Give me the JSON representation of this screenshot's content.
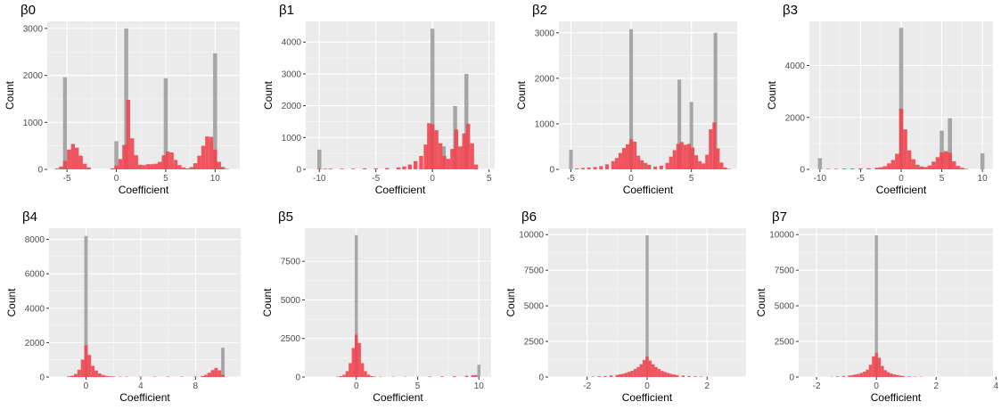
{
  "colors": {
    "panel_bg": "#ebebeb",
    "grid": "#ffffff",
    "gray_bar": "#999999",
    "red_bar": "#f0454f"
  },
  "layout_words": {
    "grid": "2 rows x 4 columns",
    "overlay": "gray histogram behind semi-transparent red histogram"
  },
  "chart_data": [
    {
      "type": "bar",
      "title": "β0",
      "xlabel": "Coefficient",
      "ylabel": "Count",
      "xlim": [
        -7,
        12.5
      ],
      "ylim": [
        0,
        3150
      ],
      "xticks": [
        -5,
        0,
        5,
        10
      ],
      "xtick_labels": [
        "-5",
        "0",
        "5",
        "10"
      ],
      "yticks": [
        0,
        1000,
        2000,
        3000
      ],
      "ytick_labels": [
        "0",
        "1000",
        "2000",
        "3000"
      ],
      "bar_width": 0.4,
      "series": [
        {
          "color": "gray",
          "x": [
            -5.2,
            0,
            1,
            5,
            10
          ],
          "values": [
            1960,
            600,
            3000,
            1940,
            2470
          ]
        },
        {
          "color": "red",
          "x": [
            -6,
            -5.6,
            -5.2,
            -4.8,
            -4.4,
            -4,
            -3.6,
            -3.2,
            -2.8,
            -0.4,
            0,
            0.4,
            0.8,
            1.2,
            1.6,
            2,
            2.4,
            2.8,
            3.2,
            3.6,
            4,
            4.4,
            4.8,
            5.2,
            5.6,
            6,
            6.4,
            6.8,
            7.2,
            7.6,
            8,
            8.4,
            8.8,
            9.2,
            9.6,
            10,
            10.4,
            10.8,
            11.2
          ],
          "values": [
            20,
            60,
            180,
            420,
            540,
            460,
            290,
            120,
            40,
            20,
            80,
            220,
            520,
            1480,
            660,
            300,
            100,
            90,
            110,
            110,
            120,
            160,
            300,
            380,
            360,
            200,
            90,
            40,
            20,
            50,
            130,
            290,
            500,
            700,
            690,
            420,
            160,
            50,
            10
          ]
        }
      ]
    },
    {
      "type": "bar",
      "title": "β1",
      "xlabel": "Coefficient",
      "ylabel": "Count",
      "xlim": [
        -11.2,
        5.5
      ],
      "ylim": [
        0,
        4650
      ],
      "xticks": [
        -10,
        -5,
        0,
        5
      ],
      "xtick_labels": [
        "-10",
        "-5",
        "0",
        "5"
      ],
      "yticks": [
        0,
        1000,
        2000,
        3000,
        4000
      ],
      "ytick_labels": [
        "0",
        "1000",
        "2000",
        "3000",
        "4000"
      ],
      "bar_width": 0.35,
      "series": [
        {
          "color": "gray",
          "x": [
            -10,
            0,
            1,
            2,
            3
          ],
          "values": [
            620,
            4420,
            720,
            1990,
            3000
          ]
        },
        {
          "color": "red",
          "x": [
            -10,
            -9.5,
            -9,
            -8,
            -7,
            -6,
            -5,
            -4,
            -3,
            -2.5,
            -2,
            -1.5,
            -1,
            -0.6,
            -0.3,
            0,
            0.35,
            0.7,
            1.05,
            1.4,
            1.75,
            2.1,
            2.45,
            2.8,
            3.15,
            3.5,
            3.85
          ],
          "values": [
            20,
            20,
            20,
            20,
            20,
            30,
            30,
            40,
            60,
            90,
            150,
            260,
            420,
            780,
            1450,
            1420,
            1230,
            820,
            420,
            330,
            640,
            1250,
            720,
            1130,
            1430,
            820,
            150
          ]
        }
      ]
    },
    {
      "type": "bar",
      "title": "β2",
      "xlabel": "Coefficient",
      "ylabel": "Count",
      "xlim": [
        -6,
        8.8
      ],
      "ylim": [
        0,
        3250
      ],
      "xticks": [
        -5,
        0,
        5
      ],
      "xtick_labels": [
        "-5",
        "0",
        "5"
      ],
      "yticks": [
        0,
        1000,
        2000,
        3000
      ],
      "ytick_labels": [
        "0",
        "1000",
        "2000",
        "3000"
      ],
      "bar_width": 0.3,
      "series": [
        {
          "color": "gray",
          "x": [
            -5,
            0,
            4,
            5,
            7
          ],
          "values": [
            430,
            3080,
            1970,
            1480,
            3000
          ]
        },
        {
          "color": "red",
          "x": [
            -4.5,
            -4,
            -3.5,
            -3,
            -2.5,
            -2,
            -1.5,
            -1.2,
            -0.9,
            -0.6,
            -0.3,
            0,
            0.3,
            0.6,
            0.9,
            1.2,
            1.5,
            2,
            2.5,
            3,
            3.3,
            3.6,
            3.9,
            4.2,
            4.5,
            4.8,
            5.1,
            5.4,
            5.7,
            6,
            6.3,
            6.6,
            6.9,
            7.2,
            7.5,
            7.8,
            8.1
          ],
          "values": [
            20,
            30,
            40,
            50,
            70,
            110,
            180,
            250,
            360,
            470,
            550,
            660,
            610,
            300,
            200,
            140,
            100,
            60,
            80,
            140,
            280,
            420,
            560,
            600,
            540,
            560,
            480,
            310,
            180,
            130,
            320,
            880,
            1030,
            460,
            150,
            40,
            10
          ]
        }
      ]
    },
    {
      "type": "bar",
      "title": "β3",
      "xlabel": "Coefficient",
      "ylabel": "Count",
      "xlim": [
        -11.3,
        11.3
      ],
      "ylim": [
        0,
        5700
      ],
      "xticks": [
        -10,
        -5,
        0,
        5,
        10
      ],
      "xtick_labels": [
        "-10",
        "-5",
        "0",
        "5",
        "10"
      ],
      "yticks": [
        0,
        2000,
        4000
      ],
      "ytick_labels": [
        "0",
        "2000",
        "4000"
      ],
      "bar_width": 0.5,
      "series": [
        {
          "color": "gray",
          "x": [
            -10,
            0,
            5,
            6,
            10
          ],
          "values": [
            430,
            5450,
            1490,
            1970,
            620
          ]
        },
        {
          "color": "red",
          "x": [
            -9,
            -8,
            -7,
            -6,
            -5,
            -4,
            -3,
            -2.5,
            -2,
            -1.5,
            -1,
            -0.5,
            0,
            0.5,
            1,
            1.5,
            2,
            2.5,
            3,
            3.5,
            4,
            4.5,
            5,
            5.5,
            6,
            6.5,
            7,
            7.5,
            8
          ],
          "values": [
            20,
            20,
            30,
            30,
            40,
            40,
            60,
            80,
            120,
            230,
            360,
            600,
            2330,
            1540,
            730,
            390,
            180,
            110,
            90,
            150,
            300,
            470,
            650,
            700,
            640,
            310,
            130,
            60,
            20
          ]
        }
      ]
    },
    {
      "type": "bar",
      "title": "β4",
      "xlabel": "Coefficient",
      "ylabel": "Count",
      "xlim": [
        -2.7,
        11.3
      ],
      "ylim": [
        0,
        8650
      ],
      "xticks": [
        0,
        4,
        8
      ],
      "xtick_labels": [
        "0",
        "4",
        "8"
      ],
      "yticks": [
        0,
        2000,
        4000,
        6000,
        8000
      ],
      "ytick_labels": [
        "0",
        "2000",
        "4000",
        "6000",
        "8000"
      ],
      "bar_width": 0.25,
      "series": [
        {
          "color": "gray",
          "x": [
            0,
            10
          ],
          "values": [
            8200,
            1700
          ]
        },
        {
          "color": "red",
          "x": [
            -1.25,
            -1,
            -0.75,
            -0.5,
            -0.25,
            0,
            0.25,
            0.5,
            0.75,
            1,
            1.25,
            1.5,
            1.75,
            2,
            2.5,
            3,
            4,
            5,
            6,
            7,
            8,
            8.5,
            8.75,
            9,
            9.25,
            9.5,
            9.75,
            10
          ],
          "values": [
            40,
            80,
            180,
            420,
            1010,
            1850,
            1280,
            650,
            380,
            210,
            120,
            70,
            40,
            30,
            20,
            20,
            20,
            20,
            20,
            20,
            30,
            60,
            120,
            250,
            400,
            530,
            390,
            120
          ]
        }
      ]
    },
    {
      "type": "bar",
      "title": "β5",
      "xlabel": "Coefficient",
      "ylabel": "Count",
      "xlim": [
        -4.2,
        11
      ],
      "ylim": [
        0,
        9650
      ],
      "xticks": [
        0,
        5,
        10
      ],
      "xtick_labels": [
        "0",
        "5",
        "10"
      ],
      "yticks": [
        0,
        2500,
        5000,
        7500
      ],
      "ytick_labels": [
        "0",
        "2500",
        "5000",
        "7500"
      ],
      "bar_width": 0.25,
      "series": [
        {
          "color": "gray",
          "x": [
            0,
            10
          ],
          "values": [
            9200,
            800
          ]
        },
        {
          "color": "red",
          "x": [
            -1.5,
            -1.25,
            -1,
            -0.75,
            -0.5,
            -0.25,
            0,
            0.25,
            0.5,
            0.75,
            1,
            1.25,
            1.5,
            2,
            3,
            4,
            5,
            6,
            7,
            8,
            9,
            9.5,
            9.75
          ],
          "values": [
            30,
            60,
            150,
            380,
            900,
            1880,
            2750,
            2200,
            900,
            380,
            150,
            60,
            30,
            20,
            20,
            20,
            20,
            30,
            40,
            50,
            80,
            120,
            130
          ]
        }
      ]
    },
    {
      "type": "bar",
      "title": "β6",
      "xlabel": "Coefficient",
      "ylabel": "Count",
      "xlim": [
        -3.3,
        3.3
      ],
      "ylim": [
        0,
        10450
      ],
      "xticks": [
        -2,
        0,
        2
      ],
      "xtick_labels": [
        "-2",
        "0",
        "2"
      ],
      "yticks": [
        0,
        2500,
        5000,
        7500,
        10000
      ],
      "ytick_labels": [
        "0",
        "2500",
        "5000",
        "7500",
        "10000"
      ],
      "bar_width": 0.1,
      "series": [
        {
          "color": "gray",
          "x": [
            0
          ],
          "values": [
            9950
          ]
        },
        {
          "color": "red",
          "x": [
            -2,
            -1.8,
            -1.6,
            -1.4,
            -1.2,
            -1,
            -0.9,
            -0.8,
            -0.7,
            -0.6,
            -0.5,
            -0.4,
            -0.3,
            -0.2,
            -0.1,
            0,
            0.1,
            0.2,
            0.3,
            0.4,
            0.5,
            0.6,
            0.7,
            0.8,
            0.9,
            1,
            1.2,
            1.4,
            1.6,
            1.8,
            2
          ],
          "values": [
            20,
            30,
            50,
            70,
            110,
            150,
            190,
            230,
            290,
            360,
            440,
            570,
            700,
            900,
            1200,
            1450,
            1150,
            900,
            700,
            560,
            430,
            350,
            280,
            220,
            180,
            140,
            100,
            70,
            50,
            30,
            20
          ]
        }
      ]
    },
    {
      "type": "bar",
      "title": "β7",
      "xlabel": "Coefficient",
      "ylabel": "Count",
      "xlim": [
        -2.6,
        3.9
      ],
      "ylim": [
        0,
        10450
      ],
      "xticks": [
        -2,
        0,
        2,
        4
      ],
      "xtick_labels": [
        "-2",
        "0",
        "2",
        "4"
      ],
      "yticks": [
        0,
        2500,
        5000,
        7500,
        10000
      ],
      "ytick_labels": [
        "0",
        "2500",
        "5000",
        "7500",
        "10000"
      ],
      "bar_width": 0.1,
      "series": [
        {
          "color": "gray",
          "x": [
            0
          ],
          "values": [
            9950
          ]
        },
        {
          "color": "red",
          "x": [
            -1.5,
            -1.3,
            -1.1,
            -0.9,
            -0.8,
            -0.7,
            -0.6,
            -0.5,
            -0.4,
            -0.3,
            -0.2,
            -0.1,
            0,
            0.1,
            0.2,
            0.3,
            0.4,
            0.5,
            0.6,
            0.7,
            0.8,
            0.9,
            1.1,
            1.3,
            1.5
          ],
          "values": [
            20,
            40,
            70,
            110,
            140,
            180,
            220,
            290,
            380,
            520,
            860,
            1450,
            1700,
            1350,
            780,
            480,
            340,
            250,
            180,
            140,
            100,
            70,
            40,
            30,
            20
          ]
        }
      ]
    }
  ]
}
